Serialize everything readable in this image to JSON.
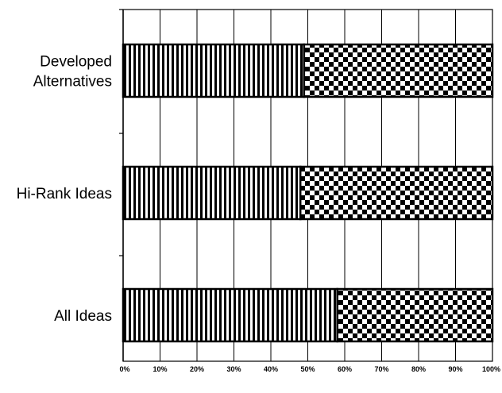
{
  "chart_data": {
    "type": "bar",
    "stacked": true,
    "orientation": "horizontal",
    "percent_scale": true,
    "categories": [
      "Developed Alternatives",
      "Hi-Rank Ideas",
      "All Ideas"
    ],
    "category_label_lines": [
      [
        "Developed",
        "Alternatives"
      ],
      [
        "Hi-Rank Ideas"
      ],
      [
        "All Ideas"
      ]
    ],
    "series": [
      {
        "pattern": "vertical-stripes",
        "values": [
          49,
          48,
          58
        ]
      },
      {
        "pattern": "checkerboard",
        "values": [
          51,
          52,
          42
        ]
      }
    ],
    "xlim": [
      0,
      100
    ],
    "xticks": [
      "0%",
      "10%",
      "20%",
      "30%",
      "40%",
      "50%",
      "60%",
      "70%",
      "80%",
      "90%",
      "100%"
    ],
    "grid": true,
    "legend": "none",
    "colors": {
      "ink": "#000000",
      "background": "#ffffff",
      "grid": "#000000"
    }
  }
}
